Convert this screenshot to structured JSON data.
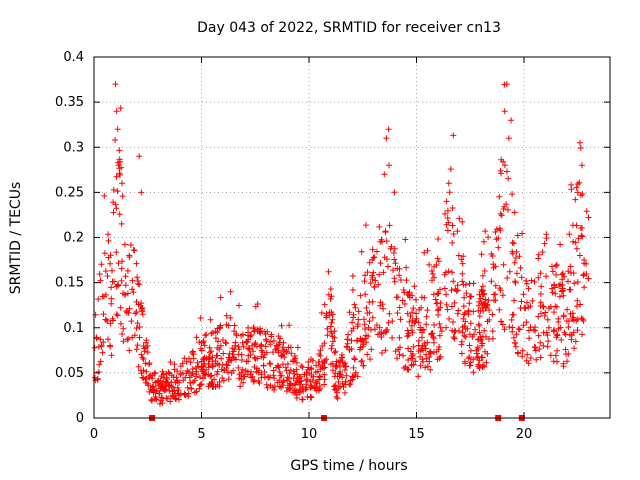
{
  "chart_data": {
    "type": "scatter",
    "title": "Day 043 of 2022, SRMTID for receiver cn13",
    "xlabel": "GPS time / hours",
    "ylabel": "SRMTID / TECUs",
    "xlim": [
      0,
      24
    ],
    "ylim": [
      0,
      0.4
    ],
    "xticks": [
      0,
      5,
      10,
      15,
      20
    ],
    "xtick_labels": [
      "0",
      "5",
      "10",
      "15",
      "20"
    ],
    "yticks": [
      0,
      0.05,
      0.1,
      0.15,
      0.2,
      0.25,
      0.3,
      0.35,
      0.4
    ],
    "ytick_labels": [
      "0",
      "0.05",
      "0.1",
      "0.15",
      "0.2",
      "0.25",
      "0.3",
      "0.35",
      "0.4"
    ],
    "grid": true,
    "marker": "+",
    "color": "#ff0000",
    "gap_markers_x": [
      2.7,
      10.7,
      18.8,
      19.9
    ],
    "series": [
      {
        "name": "SRMTID",
        "profile": [
          [
            0.0,
            0.04
          ],
          [
            0.3,
            0.12
          ],
          [
            0.5,
            0.16
          ],
          [
            0.8,
            0.12
          ],
          [
            1.0,
            0.22
          ],
          [
            1.2,
            0.2
          ],
          [
            1.5,
            0.14
          ],
          [
            1.8,
            0.16
          ],
          [
            2.0,
            0.12
          ],
          [
            2.3,
            0.08
          ],
          [
            2.6,
            0.04
          ],
          [
            3.0,
            0.03
          ],
          [
            3.5,
            0.035
          ],
          [
            4.0,
            0.04
          ],
          [
            4.5,
            0.05
          ],
          [
            5.0,
            0.06
          ],
          [
            5.5,
            0.065
          ],
          [
            6.0,
            0.07
          ],
          [
            7.0,
            0.07
          ],
          [
            8.0,
            0.065
          ],
          [
            9.0,
            0.055
          ],
          [
            9.5,
            0.04
          ],
          [
            10.0,
            0.04
          ],
          [
            10.5,
            0.05
          ],
          [
            10.8,
            0.08
          ],
          [
            11.0,
            0.1
          ],
          [
            11.3,
            0.04
          ],
          [
            11.6,
            0.05
          ],
          [
            12.0,
            0.08
          ],
          [
            12.5,
            0.1
          ],
          [
            13.0,
            0.13
          ],
          [
            13.5,
            0.14
          ],
          [
            13.8,
            0.15
          ],
          [
            14.2,
            0.12
          ],
          [
            14.6,
            0.1
          ],
          [
            15.0,
            0.08
          ],
          [
            15.5,
            0.1
          ],
          [
            16.0,
            0.12
          ],
          [
            16.5,
            0.17
          ],
          [
            17.0,
            0.14
          ],
          [
            17.5,
            0.1
          ],
          [
            18.0,
            0.1
          ],
          [
            18.5,
            0.13
          ],
          [
            19.0,
            0.2
          ],
          [
            19.5,
            0.16
          ],
          [
            20.0,
            0.1
          ],
          [
            20.5,
            0.12
          ],
          [
            21.0,
            0.14
          ],
          [
            21.5,
            0.12
          ],
          [
            22.0,
            0.1
          ],
          [
            22.5,
            0.18
          ],
          [
            22.9,
            0.16
          ]
        ],
        "spikes": [
          [
            1.0,
            0.37
          ],
          [
            1.05,
            0.34
          ],
          [
            1.1,
            0.32
          ],
          [
            1.15,
            0.28
          ],
          [
            1.3,
            0.26
          ],
          [
            2.1,
            0.29
          ],
          [
            2.2,
            0.25
          ],
          [
            13.6,
            0.31
          ],
          [
            13.7,
            0.32
          ],
          [
            13.5,
            0.27
          ],
          [
            16.4,
            0.24
          ],
          [
            16.5,
            0.26
          ],
          [
            19.2,
            0.37
          ],
          [
            19.4,
            0.33
          ],
          [
            19.1,
            0.34
          ],
          [
            19.3,
            0.31
          ],
          [
            22.6,
            0.305
          ],
          [
            22.7,
            0.28
          ],
          [
            22.5,
            0.25
          ]
        ],
        "hour_range": [
          0,
          23
        ],
        "approx_point_count": 1500
      }
    ]
  }
}
